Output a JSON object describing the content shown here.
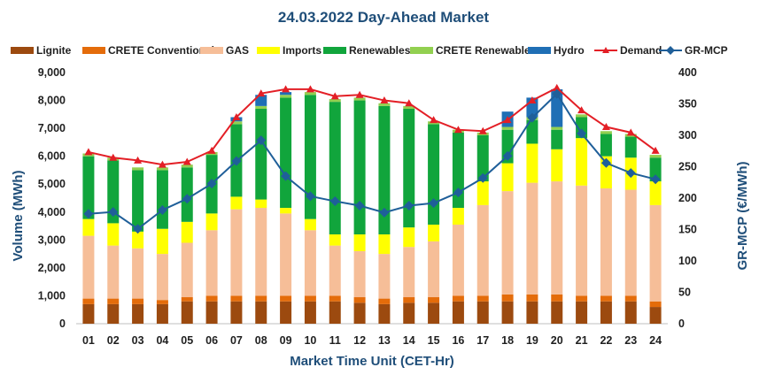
{
  "chart_data": {
    "type": "bar",
    "stacked": true,
    "title": "24.03.2022  Day-Ahead Market",
    "xlabel": "Market Time Unit (CET-Hr)",
    "ylabel": "Volume (MWh)",
    "y2label": "GR-MCP (€/MWh)",
    "ylim": [
      0,
      9000
    ],
    "y2lim": [
      0,
      400
    ],
    "yticks": [
      "0",
      "1,000",
      "2,000",
      "3,000",
      "4,000",
      "5,000",
      "6,000",
      "7,000",
      "8,000",
      "9,000"
    ],
    "yticks_values": [
      0,
      1000,
      2000,
      3000,
      4000,
      5000,
      6000,
      7000,
      8000,
      9000
    ],
    "y2ticks": [
      "0",
      "50",
      "100",
      "150",
      "200",
      "250",
      "300",
      "350",
      "400"
    ],
    "y2ticks_values": [
      0,
      50,
      100,
      150,
      200,
      250,
      300,
      350,
      400
    ],
    "categories": [
      "01",
      "02",
      "03",
      "04",
      "05",
      "06",
      "07",
      "08",
      "09",
      "10",
      "11",
      "12",
      "13",
      "14",
      "15",
      "16",
      "17",
      "18",
      "19",
      "20",
      "21",
      "22",
      "23",
      "24"
    ],
    "series": [
      {
        "name": "Lignite",
        "color": "#9c4a0f",
        "values": [
          700,
          700,
          700,
          700,
          800,
          800,
          800,
          800,
          800,
          800,
          800,
          750,
          700,
          750,
          750,
          800,
          800,
          800,
          800,
          800,
          800,
          800,
          800,
          600
        ]
      },
      {
        "name": "CRETE Conventional",
        "color": "#e46c0a",
        "values": [
          200,
          200,
          200,
          150,
          150,
          200,
          200,
          200,
          200,
          200,
          200,
          200,
          200,
          200,
          200,
          200,
          200,
          250,
          250,
          250,
          200,
          200,
          200,
          200
        ]
      },
      {
        "name": "GAS",
        "color": "#f6be98",
        "values": [
          2250,
          1900,
          1800,
          1650,
          1950,
          2350,
          3100,
          3150,
          2950,
          2350,
          1800,
          1650,
          1600,
          1800,
          2000,
          2550,
          3250,
          3700,
          4000,
          4050,
          3950,
          3850,
          3800,
          3450
        ]
      },
      {
        "name": "Imports",
        "color": "#ffff00",
        "values": [
          600,
          800,
          600,
          900,
          750,
          600,
          450,
          300,
          200,
          400,
          400,
          600,
          700,
          700,
          600,
          600,
          850,
          1000,
          1400,
          1150,
          1700,
          1150,
          1150,
          850
        ]
      },
      {
        "name": "Renewables",
        "color": "#11a53c",
        "values": [
          2250,
          2250,
          2200,
          2100,
          1950,
          2100,
          2600,
          3250,
          3950,
          4450,
          4750,
          4800,
          4600,
          4250,
          3600,
          2700,
          1650,
          1200,
          850,
          700,
          750,
          800,
          750,
          850
        ]
      },
      {
        "name": "CRETE Renewables",
        "color": "#92d050",
        "values": [
          100,
          100,
          100,
          100,
          100,
          100,
          100,
          100,
          100,
          100,
          100,
          100,
          100,
          100,
          100,
          100,
          100,
          100,
          100,
          100,
          100,
          100,
          100,
          100
        ]
      },
      {
        "name": "Hydro",
        "color": "#1f6fb5",
        "values": [
          0,
          0,
          0,
          0,
          0,
          0,
          150,
          400,
          100,
          0,
          0,
          0,
          0,
          0,
          0,
          0,
          0,
          550,
          700,
          1350,
          0,
          0,
          0,
          0
        ]
      }
    ],
    "lines": [
      {
        "name": "Demand",
        "color": "#e31f26",
        "marker": "triangle",
        "axis": "left",
        "values": [
          6150,
          5950,
          5850,
          5700,
          5800,
          6200,
          7400,
          8250,
          8400,
          8400,
          8150,
          8200,
          8000,
          7900,
          7300,
          6950,
          6900,
          7300,
          8000,
          8450,
          7650,
          7050,
          6850,
          6200
        ]
      },
      {
        "name": "GR-MCP",
        "color": "#1f5f99",
        "marker": "diamond",
        "axis": "right",
        "values": [
          175,
          178,
          151,
          181,
          199,
          223,
          259,
          292,
          235,
          203,
          195,
          188,
          177,
          188,
          192,
          209,
          232,
          267,
          328,
          366,
          303,
          256,
          240,
          230
        ]
      }
    ],
    "legend": [
      {
        "name": "Lignite",
        "color": "#9c4a0f",
        "kind": "box"
      },
      {
        "name": "CRETE Conventional",
        "color": "#e46c0a",
        "kind": "box"
      },
      {
        "name": "GAS",
        "color": "#f6be98",
        "kind": "box"
      },
      {
        "name": "Imports",
        "color": "#ffff00",
        "kind": "box"
      },
      {
        "name": "Renewables",
        "color": "#11a53c",
        "kind": "box"
      },
      {
        "name": "CRETE Renewables",
        "color": "#92d050",
        "kind": "box"
      },
      {
        "name": "Hydro",
        "color": "#1f6fb5",
        "kind": "box"
      },
      {
        "name": "Demand",
        "color": "#e31f26",
        "kind": "triangle"
      },
      {
        "name": "GR-MCP",
        "color": "#1f5f99",
        "kind": "diamond"
      }
    ],
    "legend_position": "top",
    "grid": false
  }
}
